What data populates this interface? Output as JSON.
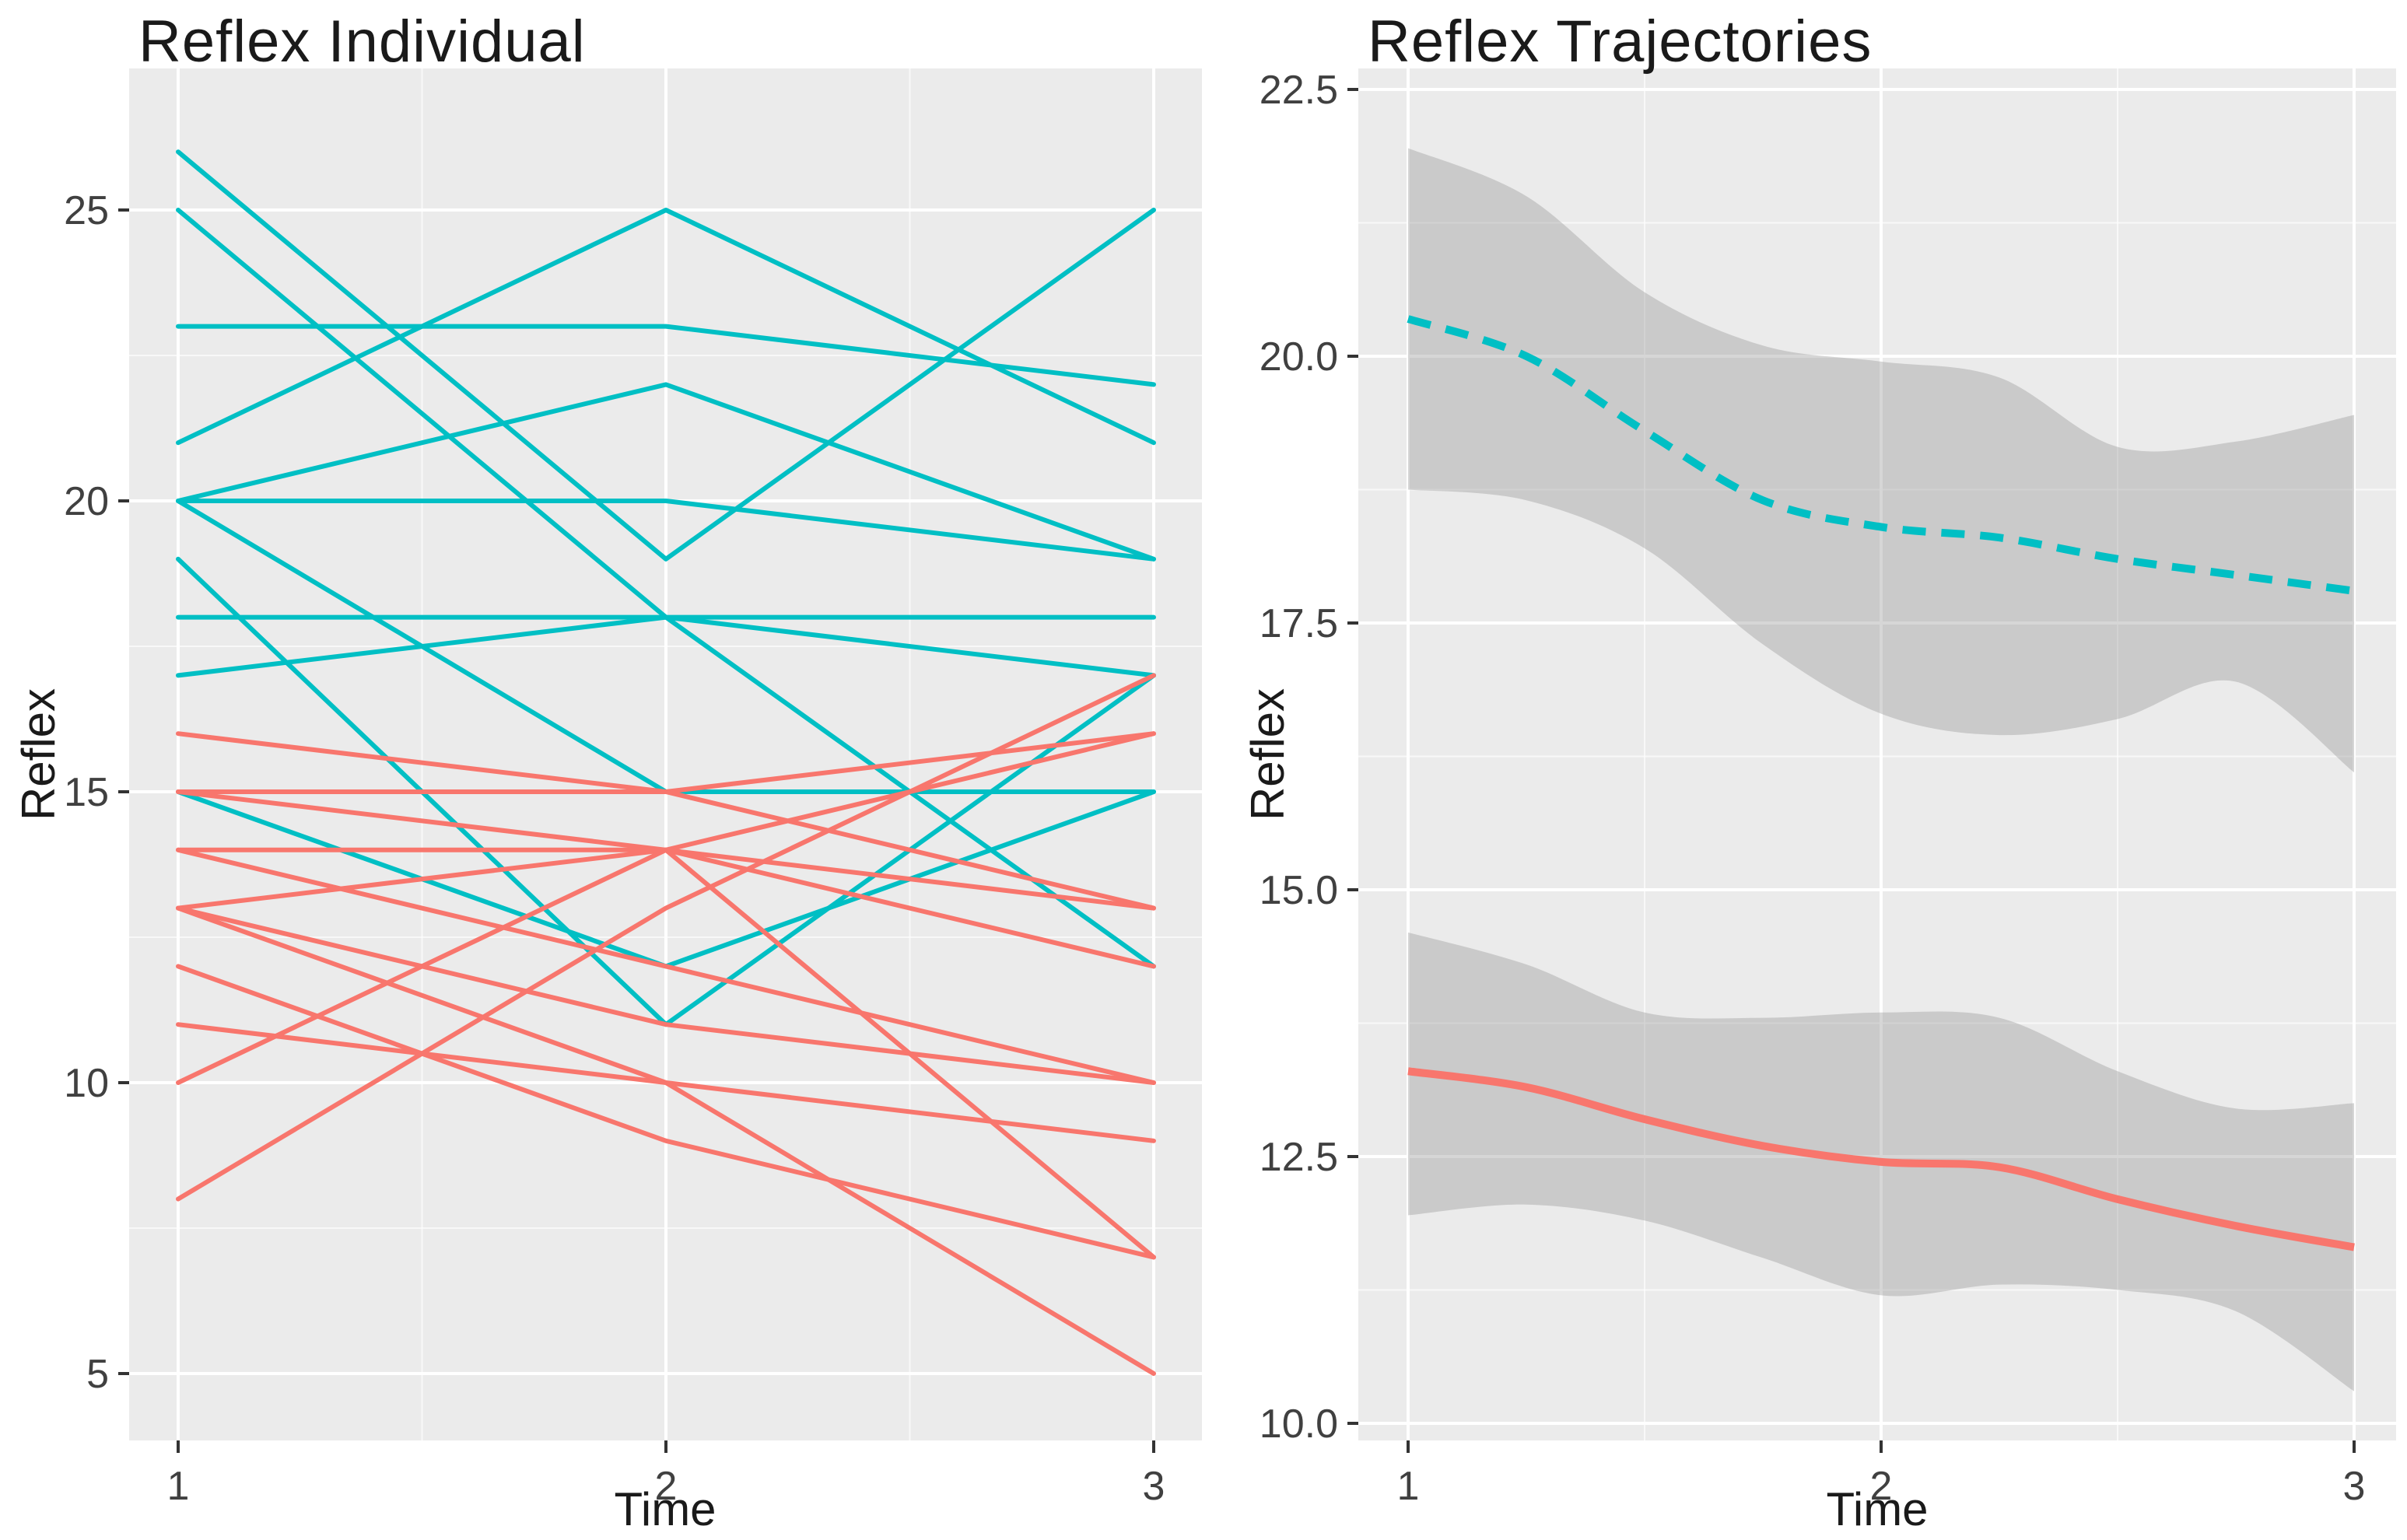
{
  "figure": {
    "kind": "two-panel ggplot line figure",
    "background": "#ffffff",
    "panel_background": "#EBEBEB",
    "grid_color": "#FFFFFF",
    "tick_mark_color": "#333333",
    "tick_label_color": "#404040",
    "title_color": "#1a1a1a",
    "group_colors": {
      "teal": "#00BFC4",
      "red": "#F8766D"
    },
    "ribbon_color": "#9E9E9E"
  },
  "chart_data": [
    {
      "type": "line",
      "title": "Reflex Individual",
      "xlabel": "Time",
      "ylabel": "Reflex",
      "legend": "none",
      "grid": "on",
      "x": [
        1,
        2,
        3
      ],
      "xtick_labels": [
        "1",
        "2",
        "3"
      ],
      "ylim": [
        3.9,
        27.5
      ],
      "yticks": [
        5,
        10,
        15,
        20,
        25
      ],
      "ytick_labels": [
        "5",
        "10",
        "15",
        "20",
        "25"
      ],
      "series": [
        {
          "name": "teal-id-01",
          "group": "teal",
          "values": [
            26,
            19,
            25
          ]
        },
        {
          "name": "teal-id-02",
          "group": "teal",
          "values": [
            25,
            18,
            12
          ]
        },
        {
          "name": "teal-id-03",
          "group": "teal",
          "values": [
            23,
            23,
            22
          ]
        },
        {
          "name": "teal-id-04",
          "group": "teal",
          "values": [
            21,
            25,
            21
          ]
        },
        {
          "name": "teal-id-05",
          "group": "teal",
          "values": [
            20,
            22,
            19
          ]
        },
        {
          "name": "teal-id-06",
          "group": "teal",
          "values": [
            20,
            20,
            19
          ]
        },
        {
          "name": "teal-id-07",
          "group": "teal",
          "values": [
            19,
            11,
            17
          ]
        },
        {
          "name": "teal-id-08",
          "group": "teal",
          "values": [
            18,
            18,
            18
          ]
        },
        {
          "name": "teal-id-09",
          "group": "teal",
          "values": [
            17,
            18,
            17
          ]
        },
        {
          "name": "teal-id-10",
          "group": "teal",
          "values": [
            15,
            12,
            15
          ]
        },
        {
          "name": "teal-id-11",
          "group": "teal",
          "values": [
            20,
            15,
            15
          ]
        },
        {
          "name": "red-id-01",
          "group": "red",
          "values": [
            16,
            15,
            13
          ]
        },
        {
          "name": "red-id-02",
          "group": "red",
          "values": [
            15,
            15,
            16
          ]
        },
        {
          "name": "red-id-03",
          "group": "red",
          "values": [
            15,
            14,
            12
          ]
        },
        {
          "name": "red-id-04",
          "group": "red",
          "values": [
            14,
            14,
            13
          ]
        },
        {
          "name": "red-id-05",
          "group": "red",
          "values": [
            14,
            12,
            10
          ]
        },
        {
          "name": "red-id-06",
          "group": "red",
          "values": [
            13,
            14,
            16
          ]
        },
        {
          "name": "red-id-07",
          "group": "red",
          "values": [
            13,
            11,
            10
          ]
        },
        {
          "name": "red-id-08",
          "group": "red",
          "values": [
            13,
            10,
            5
          ]
        },
        {
          "name": "red-id-09",
          "group": "red",
          "values": [
            12,
            9,
            7
          ]
        },
        {
          "name": "red-id-10",
          "group": "red",
          "values": [
            11,
            10,
            9
          ]
        },
        {
          "name": "red-id-11",
          "group": "red",
          "values": [
            10,
            14,
            7
          ]
        },
        {
          "name": "red-id-12",
          "group": "red",
          "values": [
            8,
            13,
            17
          ]
        }
      ]
    },
    {
      "type": "line",
      "title": "Reflex Trajectories",
      "xlabel": "Time",
      "ylabel": "Reflex",
      "legend": "none",
      "grid": "on",
      "x_smooth": [
        1,
        1.25,
        1.5,
        1.75,
        2,
        2.25,
        2.5,
        2.75,
        3
      ],
      "xticks": [
        1,
        2,
        3
      ],
      "xtick_labels": [
        "1",
        "2",
        "3"
      ],
      "ylim": [
        9.6,
        22.7
      ],
      "yticks": [
        10.0,
        12.5,
        15.0,
        17.5,
        20.0,
        22.5
      ],
      "ytick_labels": [
        "10.0",
        "12.5",
        "15.0",
        "17.5",
        "20.0",
        "22.5"
      ],
      "series": [
        {
          "name": "teal-group-mean",
          "group": "teal",
          "style": "dashed",
          "mean": [
            20.35,
            20.0,
            19.3,
            18.65,
            18.4,
            18.3,
            18.1,
            17.95,
            17.8
          ],
          "upper": [
            21.95,
            21.5,
            20.6,
            20.1,
            19.95,
            19.8,
            19.15,
            19.2,
            19.45
          ],
          "lower": [
            18.75,
            18.65,
            18.2,
            17.3,
            16.65,
            16.45,
            16.6,
            16.95,
            16.1
          ]
        },
        {
          "name": "red-group-mean",
          "group": "red",
          "style": "solid",
          "mean": [
            13.3,
            13.15,
            12.85,
            12.6,
            12.45,
            12.4,
            12.1,
            11.85,
            11.65
          ],
          "upper": [
            14.6,
            14.3,
            13.85,
            13.8,
            13.85,
            13.8,
            13.3,
            12.95,
            13.0
          ],
          "lower": [
            11.95,
            12.05,
            11.9,
            11.55,
            11.2,
            11.3,
            11.25,
            11.05,
            10.3
          ]
        }
      ]
    }
  ]
}
